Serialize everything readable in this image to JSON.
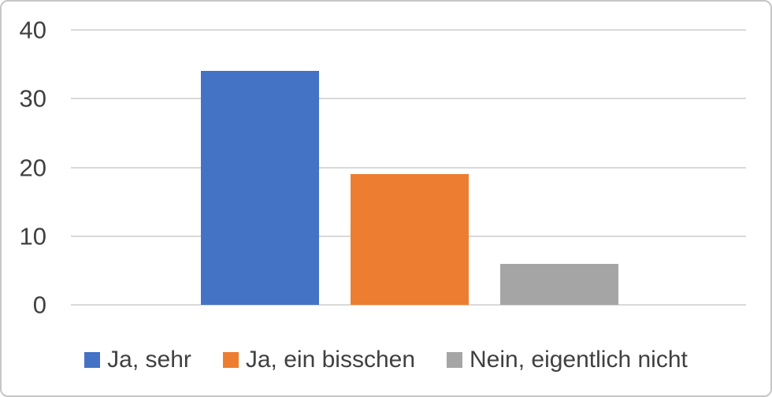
{
  "chart_data": {
    "type": "bar",
    "title": "",
    "xlabel": "",
    "ylabel": "",
    "categories": [
      "Ja, sehr",
      "Ja, ein bisschen",
      "Nein, eigentlich nicht"
    ],
    "values": [
      34,
      19,
      6
    ],
    "colors": [
      "#4472C4",
      "#ED7D31",
      "#A5A5A5"
    ],
    "ylim": [
      0,
      40
    ],
    "yticks": [
      0,
      10,
      20,
      30,
      40
    ],
    "grid": true,
    "legend_position": "bottom",
    "legend": [
      {
        "label": "Ja, sehr",
        "color": "#4472C4"
      },
      {
        "label": "Ja, ein bisschen",
        "color": "#ED7D31"
      },
      {
        "label": "Nein, eigentlich nicht",
        "color": "#A5A5A5"
      }
    ]
  },
  "style": {
    "background": "#FFFFFF",
    "border_color": "#C6C6C6",
    "gridline_color": "#D9D9D9",
    "tick_label_color": "#404040",
    "legend_text_color": "#404040"
  }
}
